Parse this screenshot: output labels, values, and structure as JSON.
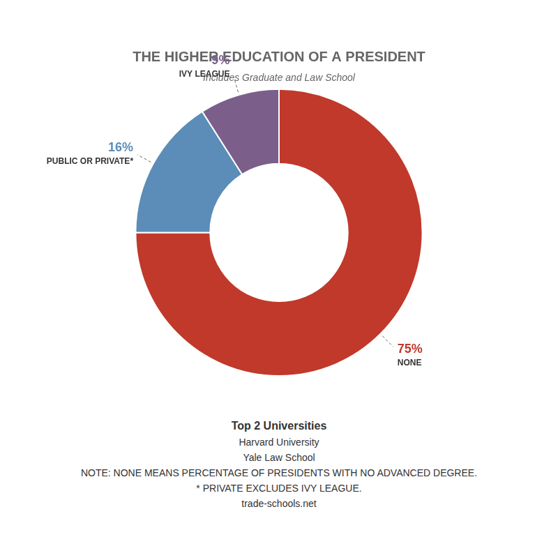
{
  "chart_data": {
    "type": "doughnut",
    "title": "THE HIGHER EDUCATION OF A PRESIDENT",
    "subtitle": "Includes Graduate and Law School",
    "categories": [
      "NONE",
      "PUBLIC OR PRIVATE*",
      "IVY LEAGUE"
    ],
    "values": [
      75,
      16,
      9
    ],
    "value_labels": [
      "75%",
      "16%",
      "9%"
    ],
    "colors": [
      "#c0392b",
      "#5b8db8",
      "#7b5f8a"
    ],
    "data_labels": true,
    "legend": false,
    "annotations": [
      "Top 2 Universities",
      "Harvard University",
      "Yale Law School",
      "NOTE: NONE MEANS PERCENTAGE OF PRESIDENTS WITH NO ADVANCED DEGREE.",
      "* PRIVATE EXCLUDES IVY LEAGUE.",
      "trade-schools.net"
    ]
  }
}
